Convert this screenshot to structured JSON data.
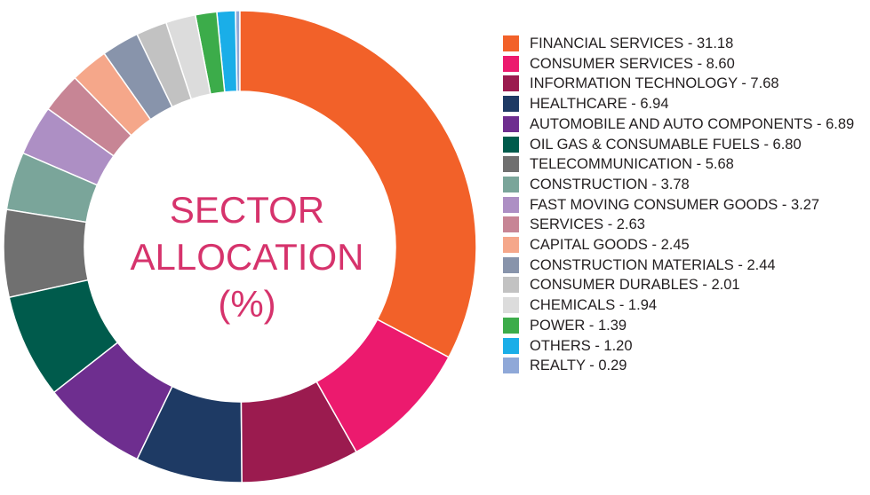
{
  "chart_data": {
    "type": "donut",
    "title": [
      "SECTOR",
      "ALLOCATION",
      "(%)"
    ],
    "categories": [
      "FINANCIAL SERVICES - 31.18",
      "CONSUMER SERVICES - 8.60",
      "INFORMATION TECHNOLOGY - 7.68",
      "HEALTHCARE - 6.94",
      "AUTOMOBILE AND AUTO COMPONENTS - 6.89",
      "OIL GAS & CONSUMABLE FUELS - 6.80",
      "TELECOMMUNICATION - 5.68",
      "CONSTRUCTION - 3.78",
      "FAST MOVING CONSUMER GOODS - 3.27",
      "SERVICES - 2.63",
      "CAPITAL GOODS - 2.45",
      "CONSTRUCTION MATERIALS - 2.44",
      "CONSUMER DURABLES - 2.01",
      "CHEMICALS - 1.94",
      "POWER - 1.39",
      "OTHERS - 1.20",
      "REALTY - 0.29"
    ],
    "values": [
      31.18,
      8.6,
      7.68,
      6.94,
      6.89,
      6.8,
      5.68,
      3.78,
      3.27,
      2.63,
      2.45,
      2.44,
      2.01,
      1.94,
      1.39,
      1.2,
      0.29
    ],
    "colors": [
      "#f26129",
      "#ec1a6e",
      "#9b1b4f",
      "#1e3a64",
      "#6e2e8f",
      "#005b4c",
      "#707070",
      "#7aa59a",
      "#ad8fc4",
      "#c78595",
      "#f5a78a",
      "#8894ab",
      "#c2c2c2",
      "#dcdcdc",
      "#3cac4a",
      "#1aaee8",
      "#8fa8d8"
    ]
  }
}
